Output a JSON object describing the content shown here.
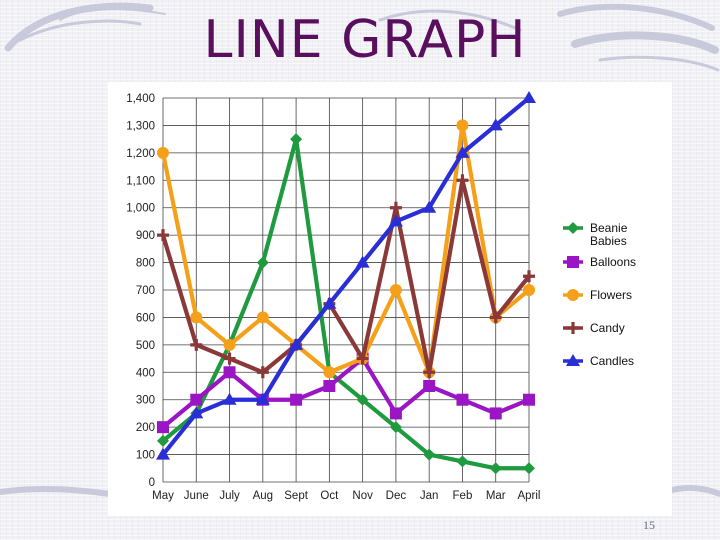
{
  "slide": {
    "title": "LINE GRAPH",
    "page_number": "15"
  },
  "chart_data": {
    "type": "line",
    "title": "",
    "xlabel": "",
    "ylabel": "",
    "ylim": [
      0,
      1400
    ],
    "y_ticks": [
      "0",
      "100",
      "200",
      "300",
      "400",
      "500",
      "600",
      "700",
      "800",
      "900",
      "1,000",
      "1,100",
      "1,200",
      "1,300",
      "1,400"
    ],
    "categories": [
      "May",
      "June",
      "July",
      "Aug",
      "Sept",
      "Oct",
      "Nov",
      "Dec",
      "Jan",
      "Feb",
      "Mar",
      "April"
    ],
    "grid": true,
    "legend_position": "right",
    "series": [
      {
        "name": "Beanie Babies",
        "color": "#1f9a3f",
        "marker": "diamond",
        "values": [
          150,
          250,
          500,
          800,
          1250,
          400,
          300,
          200,
          100,
          75,
          50,
          50
        ]
      },
      {
        "name": "Balloons",
        "color": "#9a16c4",
        "marker": "square",
        "values": [
          200,
          300,
          400,
          300,
          300,
          350,
          450,
          250,
          350,
          300,
          250,
          300
        ]
      },
      {
        "name": "Flowers",
        "color": "#f5a01a",
        "marker": "circle",
        "values": [
          1200,
          600,
          500,
          600,
          500,
          400,
          450,
          700,
          400,
          1300,
          600,
          700
        ]
      },
      {
        "name": "Candy",
        "color": "#8b3838",
        "marker": "plus",
        "values": [
          900,
          500,
          450,
          400,
          500,
          650,
          450,
          1000,
          400,
          1100,
          600,
          750
        ]
      },
      {
        "name": "Candles",
        "color": "#2a2ed6",
        "marker": "triangle",
        "values": [
          100,
          250,
          300,
          300,
          500,
          650,
          800,
          950,
          1000,
          1200,
          1300,
          1400
        ]
      }
    ]
  }
}
